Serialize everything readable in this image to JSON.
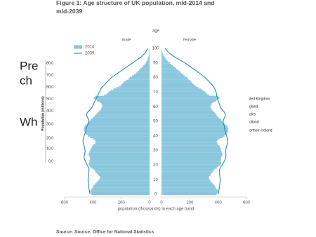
{
  "chart_data": {
    "type": "pyramid",
    "title": "Figure 1: Age structure of UK population, mid-2014 and mid-2039",
    "y_label": "age",
    "x_label": "population (thousands) in each age band",
    "source": "Source: Source: Office for National Statistics",
    "panels": [
      "male",
      "female"
    ],
    "xlim": [
      0,
      600
    ],
    "xticks": [
      0,
      200,
      400,
      600
    ],
    "ylim": [
      0,
      100
    ],
    "yticks": [
      0,
      10,
      20,
      30,
      40,
      50,
      60,
      70,
      80,
      90,
      100
    ],
    "y": [
      0,
      1,
      2,
      3,
      4,
      5,
      6,
      7,
      8,
      9,
      10,
      11,
      12,
      13,
      14,
      15,
      16,
      17,
      18,
      19,
      20,
      21,
      22,
      23,
      24,
      25,
      26,
      27,
      28,
      29,
      30,
      31,
      32,
      33,
      34,
      35,
      36,
      37,
      38,
      39,
      40,
      41,
      42,
      43,
      44,
      45,
      46,
      47,
      48,
      49,
      50,
      51,
      52,
      53,
      54,
      55,
      56,
      57,
      58,
      59,
      60,
      61,
      62,
      63,
      64,
      65,
      66,
      67,
      68,
      69,
      70,
      71,
      72,
      73,
      74,
      75,
      76,
      77,
      78,
      79,
      80,
      81,
      82,
      83,
      84,
      85,
      86,
      87,
      88,
      89,
      90,
      91,
      92,
      93,
      94,
      95,
      96,
      97,
      98,
      99,
      100
    ],
    "series": [
      {
        "name": "2014",
        "style": "bar",
        "color": "#88c6dd",
        "male": [
          410,
          415,
          420,
          415,
          405,
          400,
          395,
          385,
          375,
          365,
          355,
          350,
          350,
          360,
          370,
          380,
          385,
          395,
          410,
          420,
          430,
          430,
          425,
          425,
          420,
          420,
          425,
          430,
          430,
          425,
          420,
          415,
          410,
          405,
          395,
          385,
          380,
          385,
          400,
          420,
          435,
          445,
          455,
          460,
          465,
          465,
          460,
          455,
          445,
          435,
          425,
          415,
          405,
          395,
          385,
          375,
          365,
          355,
          345,
          340,
          335,
          335,
          340,
          350,
          370,
          380,
          395,
          385,
          320,
          300,
          290,
          275,
          255,
          235,
          215,
          200,
          190,
          180,
          165,
          150,
          140,
          125,
          110,
          95,
          85,
          75,
          65,
          55,
          45,
          35,
          27,
          21,
          16,
          12,
          9,
          6,
          4,
          3,
          2,
          1,
          1
        ],
        "female": [
          390,
          395,
          400,
          395,
          385,
          380,
          375,
          365,
          355,
          345,
          340,
          335,
          335,
          345,
          350,
          360,
          365,
          375,
          390,
          400,
          415,
          420,
          420,
          420,
          420,
          420,
          425,
          430,
          430,
          425,
          420,
          420,
          415,
          410,
          400,
          395,
          390,
          395,
          410,
          430,
          445,
          455,
          465,
          470,
          470,
          470,
          465,
          460,
          450,
          440,
          430,
          420,
          410,
          400,
          390,
          385,
          375,
          365,
          355,
          350,
          345,
          350,
          355,
          365,
          385,
          395,
          410,
          400,
          335,
          320,
          310,
          295,
          280,
          260,
          245,
          230,
          220,
          210,
          200,
          190,
          180,
          165,
          155,
          140,
          130,
          120,
          105,
          95,
          80,
          70,
          58,
          47,
          37,
          29,
          22,
          16,
          11,
          8,
          5,
          3,
          2
        ]
      },
      {
        "name": "2039",
        "style": "line",
        "color": "#2a8db5",
        "male": [
          420,
          422,
          424,
          426,
          428,
          430,
          430,
          432,
          432,
          434,
          434,
          434,
          432,
          432,
          430,
          430,
          428,
          428,
          430,
          435,
          440,
          445,
          450,
          455,
          460,
          462,
          462,
          460,
          458,
          455,
          455,
          458,
          460,
          462,
          465,
          468,
          470,
          470,
          468,
          465,
          462,
          458,
          455,
          450,
          448,
          446,
          445,
          440,
          435,
          430,
          428,
          430,
          435,
          440,
          445,
          445,
          440,
          430,
          420,
          410,
          405,
          400,
          395,
          390,
          385,
          380,
          375,
          370,
          365,
          360,
          355,
          350,
          345,
          340,
          330,
          320,
          310,
          300,
          290,
          280,
          270,
          255,
          240,
          225,
          210,
          195,
          180,
          165,
          150,
          135,
          120,
          105,
          90,
          75,
          62,
          50,
          40,
          31,
          24,
          18,
          14
        ],
        "female": [
          400,
          402,
          404,
          406,
          408,
          410,
          410,
          412,
          412,
          414,
          414,
          414,
          412,
          412,
          410,
          410,
          408,
          410,
          415,
          420,
          428,
          435,
          440,
          445,
          450,
          452,
          455,
          455,
          455,
          452,
          452,
          455,
          458,
          460,
          463,
          466,
          468,
          468,
          466,
          463,
          460,
          456,
          453,
          450,
          448,
          446,
          445,
          442,
          438,
          435,
          435,
          438,
          442,
          446,
          450,
          450,
          445,
          438,
          428,
          420,
          415,
          412,
          408,
          404,
          400,
          398,
          395,
          392,
          390,
          388,
          385,
          382,
          378,
          372,
          365,
          357,
          348,
          338,
          328,
          318,
          308,
          295,
          282,
          268,
          254,
          240,
          225,
          210,
          195,
          180,
          165,
          148,
          130,
          112,
          95,
          80,
          66,
          53,
          42,
          33,
          26
        ]
      }
    ]
  },
  "overlay": {
    "fragments": [
      "Pre",
      "ch",
      "Wh"
    ],
    "axis_title": "Population (millions)",
    "axis_labels": [
      "80,0",
      "70,0",
      "60,0",
      "50,0",
      "40,0",
      "30,0",
      "20,0",
      "10,0",
      "0,0"
    ],
    "legend_fragments": [
      "ited Kingdom",
      "gland",
      "ales",
      "otland",
      "orthern Ireland"
    ]
  }
}
